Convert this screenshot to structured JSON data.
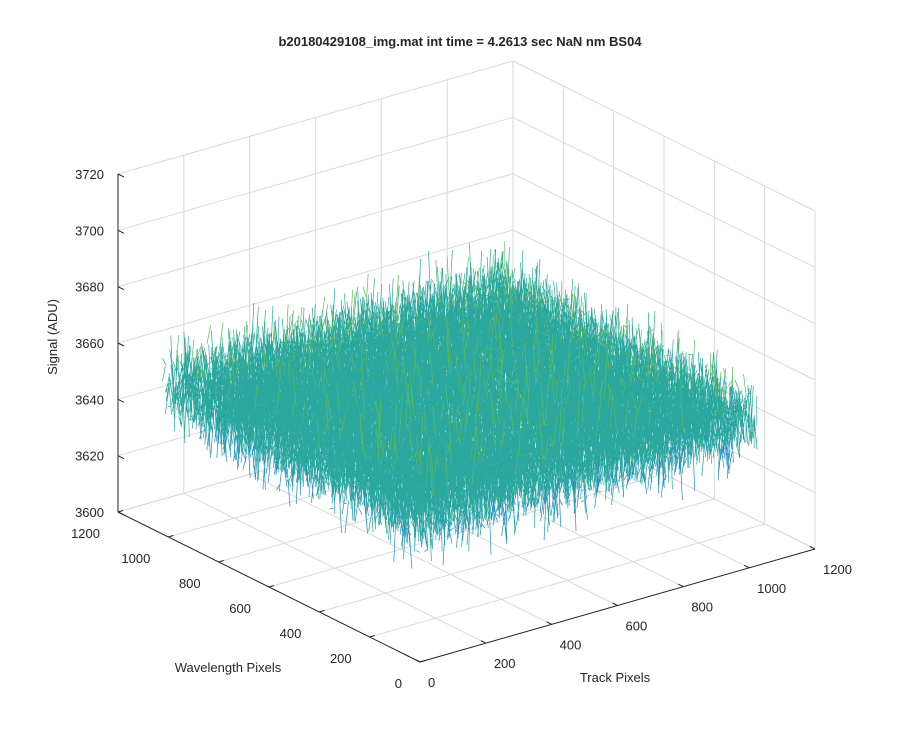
{
  "chart_data": {
    "type": "surface",
    "title": "b20180429108_img.mat int time = 4.2613 sec  NaN nm BS04",
    "xlabel": "Track Pixels",
    "ylabel": "Wavelength Pixels",
    "zlabel": "Signal (ADU)",
    "xlim": [
      0,
      1200
    ],
    "ylim": [
      0,
      1200
    ],
    "zlim": [
      3600,
      3720
    ],
    "xticks": [
      0,
      200,
      400,
      600,
      800,
      1000,
      1200
    ],
    "yticks": [
      0,
      200,
      400,
      600,
      800,
      1000,
      1200
    ],
    "zticks": [
      3600,
      3620,
      3640,
      3660,
      3680,
      3700,
      3720
    ],
    "data_extent": {
      "x": [
        1,
        1024
      ],
      "y": [
        1,
        1024
      ]
    },
    "signal_mean": 3652,
    "signal_range": [
      3612,
      3712
    ],
    "colormap": [
      "#0072BD",
      "#1F8FC0",
      "#2AA89E",
      "#5CB85C",
      "#A4C53A",
      "#EDB120"
    ],
    "grid": true,
    "box": false,
    "view": "3d"
  }
}
